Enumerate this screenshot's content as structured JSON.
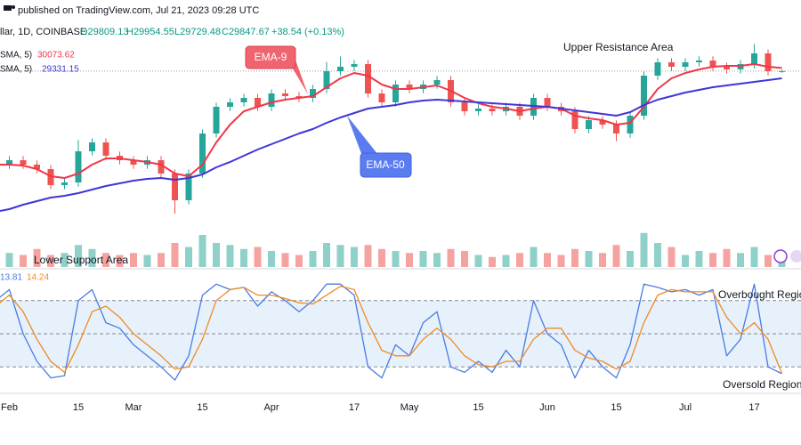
{
  "header": {
    "published": "published on TradingView.com, Jul 21, 2023 09:28 UTC"
  },
  "chart_data": [
    {
      "type": "candlestick",
      "legend": {
        "symbol": "llar, 1D, COINBASE",
        "open": "O29809.13",
        "high": "H29954.55",
        "low": "L29729.48",
        "close": "C29847.67",
        "change": "+38.54 (+0.13%)"
      },
      "annotations": [
        "EMA-9",
        "EMA-50",
        "Upper Resistance Area",
        "Lower Support Area"
      ],
      "up_color": "#26a69a",
      "down_color": "#ef5350",
      "ylim": [
        18960,
        32400
      ],
      "open": [
        22800,
        23120,
        23440,
        23120,
        22800,
        21650,
        21840,
        24080,
        24720,
        23760,
        23440,
        23120,
        23440,
        22480,
        20560,
        22480,
        25360,
        27280,
        27600,
        27920,
        27280,
        28240,
        28050,
        27920,
        28560,
        29840,
        30160,
        30350,
        28240,
        27600,
        28880,
        28560,
        28880,
        29200,
        27600,
        26960,
        27150,
        26960,
        27280,
        26640,
        27920,
        27280,
        26960,
        25680,
        26320,
        26000,
        25360,
        26640,
        29520,
        30480,
        30160,
        30480,
        30610,
        30160,
        29970,
        30350,
        31120,
        29809.13
      ],
      "high": [
        23420,
        23740,
        23740,
        23420,
        23100,
        22140,
        24900,
        25020,
        25020,
        24060,
        23740,
        23740,
        23740,
        22780,
        22780,
        25660,
        27580,
        27900,
        28220,
        28220,
        28540,
        28540,
        28350,
        28860,
        30500,
        30900,
        30650,
        30650,
        28540,
        29180,
        29180,
        29180,
        29500,
        29500,
        27900,
        27450,
        27450,
        27580,
        27580,
        28220,
        28220,
        27580,
        27260,
        26620,
        26620,
        26300,
        26940,
        29820,
        30780,
        30780,
        30780,
        30910,
        30910,
        30460,
        30650,
        31800,
        31420,
        29954.55
      ],
      "low": [
        22500,
        22820,
        22820,
        22500,
        21350,
        21350,
        21540,
        23780,
        23460,
        23140,
        22820,
        22820,
        22180,
        19600,
        20260,
        22180,
        25060,
        26980,
        27300,
        26980,
        26980,
        27750,
        27620,
        27620,
        28260,
        29540,
        29860,
        27940,
        27300,
        27300,
        28260,
        28260,
        28580,
        27300,
        26660,
        26660,
        26660,
        26660,
        26340,
        26340,
        26980,
        26660,
        25380,
        25380,
        25700,
        24800,
        25060,
        26340,
        29220,
        29860,
        29860,
        30180,
        29860,
        29670,
        29670,
        30050,
        29540,
        29729.48
      ],
      "close": [
        23120,
        23440,
        23120,
        22800,
        21650,
        21840,
        24080,
        24720,
        23760,
        23440,
        23120,
        23440,
        22480,
        20560,
        22480,
        25360,
        27280,
        27600,
        27920,
        27280,
        28240,
        28050,
        27920,
        28560,
        29840,
        30160,
        30350,
        28240,
        27600,
        28880,
        28560,
        28880,
        29200,
        27600,
        26960,
        27150,
        26960,
        27280,
        26640,
        27920,
        27280,
        26960,
        25680,
        26320,
        26000,
        25360,
        26640,
        29520,
        30480,
        30160,
        30480,
        30610,
        30160,
        29970,
        30350,
        31120,
        29840,
        29847.67
      ],
      "series": [
        {
          "name": "SMA, 5)",
          "color": "#f0364a",
          "values": [
            23120,
            23120,
            23056,
            22800,
            22288,
            22160,
            22480,
            23120,
            23568,
            23568,
            23440,
            23312,
            23120,
            22480,
            22288,
            23120,
            24720,
            26000,
            26960,
            27280,
            27600,
            27792,
            27920,
            28048,
            28688,
            29328,
            29712,
            29520,
            28880,
            28560,
            28560,
            28688,
            28816,
            28432,
            27920,
            27536,
            27280,
            27152,
            26960,
            27152,
            27280,
            27152,
            26640,
            26448,
            26320,
            26000,
            26128,
            27280,
            28560,
            29328,
            29712,
            29968,
            30160,
            30224,
            30224,
            30352,
            30160,
            30073.62
          ]
        },
        {
          "name": "SMA, 5)",
          "color": "#3f35d6",
          "values": [
            19728,
            19920,
            20240,
            20496,
            20752,
            20880,
            21072,
            21328,
            21584,
            21776,
            21968,
            22096,
            22160,
            22032,
            22160,
            22416,
            22928,
            23312,
            23760,
            24208,
            24592,
            24976,
            25360,
            25680,
            26128,
            26512,
            26832,
            27152,
            27280,
            27408,
            27600,
            27728,
            27792,
            27728,
            27664,
            27600,
            27536,
            27472,
            27408,
            27344,
            27280,
            27152,
            27024,
            26896,
            26768,
            26640,
            26896,
            27408,
            27792,
            28048,
            28304,
            28496,
            28688,
            28816,
            28944,
            29072,
            29200,
            29331.15
          ]
        }
      ]
    },
    {
      "type": "bar",
      "up_color": "#8fd1c8",
      "down_color": "#f5a3a1",
      "ylim": [
        0,
        100
      ],
      "values": [
        40,
        35,
        30,
        45,
        30,
        35,
        55,
        45,
        35,
        30,
        35,
        30,
        35,
        60,
        50,
        80,
        60,
        55,
        45,
        50,
        40,
        35,
        30,
        40,
        60,
        55,
        50,
        55,
        45,
        40,
        35,
        40,
        35,
        45,
        40,
        30,
        25,
        30,
        35,
        50,
        35,
        30,
        45,
        40,
        35,
        55,
        40,
        85,
        60,
        50,
        30,
        40,
        35,
        45,
        35,
        50,
        30,
        15
      ]
    },
    {
      "type": "line",
      "ylim": [
        0,
        100
      ],
      "bands": [
        80,
        50,
        20
      ],
      "band_fill": "#e6f1fb",
      "annotations": [
        "Overbought Region",
        "Oversold Region"
      ],
      "categories": [
        null,
        "Feb",
        null,
        null,
        null,
        null,
        "15",
        null,
        null,
        null,
        "Mar",
        null,
        null,
        null,
        null,
        "15",
        null,
        null,
        null,
        null,
        "Apr",
        null,
        null,
        null,
        null,
        null,
        "17",
        null,
        null,
        null,
        "May",
        null,
        null,
        null,
        null,
        "15",
        null,
        null,
        null,
        null,
        "Jun",
        null,
        null,
        null,
        null,
        "15",
        null,
        null,
        null,
        null,
        "Jul",
        null,
        null,
        null,
        null,
        "17",
        null,
        null
      ],
      "series": [
        {
          "color": "#4a7be6",
          "values": [
            80,
            90,
            50,
            25,
            10,
            12,
            80,
            90,
            60,
            55,
            40,
            30,
            20,
            8,
            30,
            85,
            95,
            90,
            92,
            75,
            88,
            80,
            70,
            80,
            95,
            95,
            85,
            20,
            10,
            40,
            30,
            60,
            70,
            20,
            15,
            25,
            15,
            35,
            20,
            80,
            50,
            40,
            10,
            35,
            20,
            10,
            40,
            95,
            92,
            88,
            90,
            85,
            90,
            30,
            45,
            95,
            20,
            13.81
          ]
        },
        {
          "color": "#f08a24",
          "values": [
            75,
            85,
            70,
            45,
            25,
            15,
            40,
            70,
            75,
            65,
            50,
            40,
            30,
            18,
            20,
            45,
            80,
            90,
            92,
            85,
            85,
            82,
            78,
            77,
            85,
            93,
            90,
            60,
            35,
            30,
            30,
            45,
            55,
            45,
            30,
            22,
            20,
            25,
            25,
            45,
            55,
            55,
            35,
            28,
            25,
            18,
            25,
            60,
            85,
            90,
            88,
            88,
            88,
            65,
            50,
            60,
            45,
            14.24
          ]
        }
      ]
    }
  ]
}
